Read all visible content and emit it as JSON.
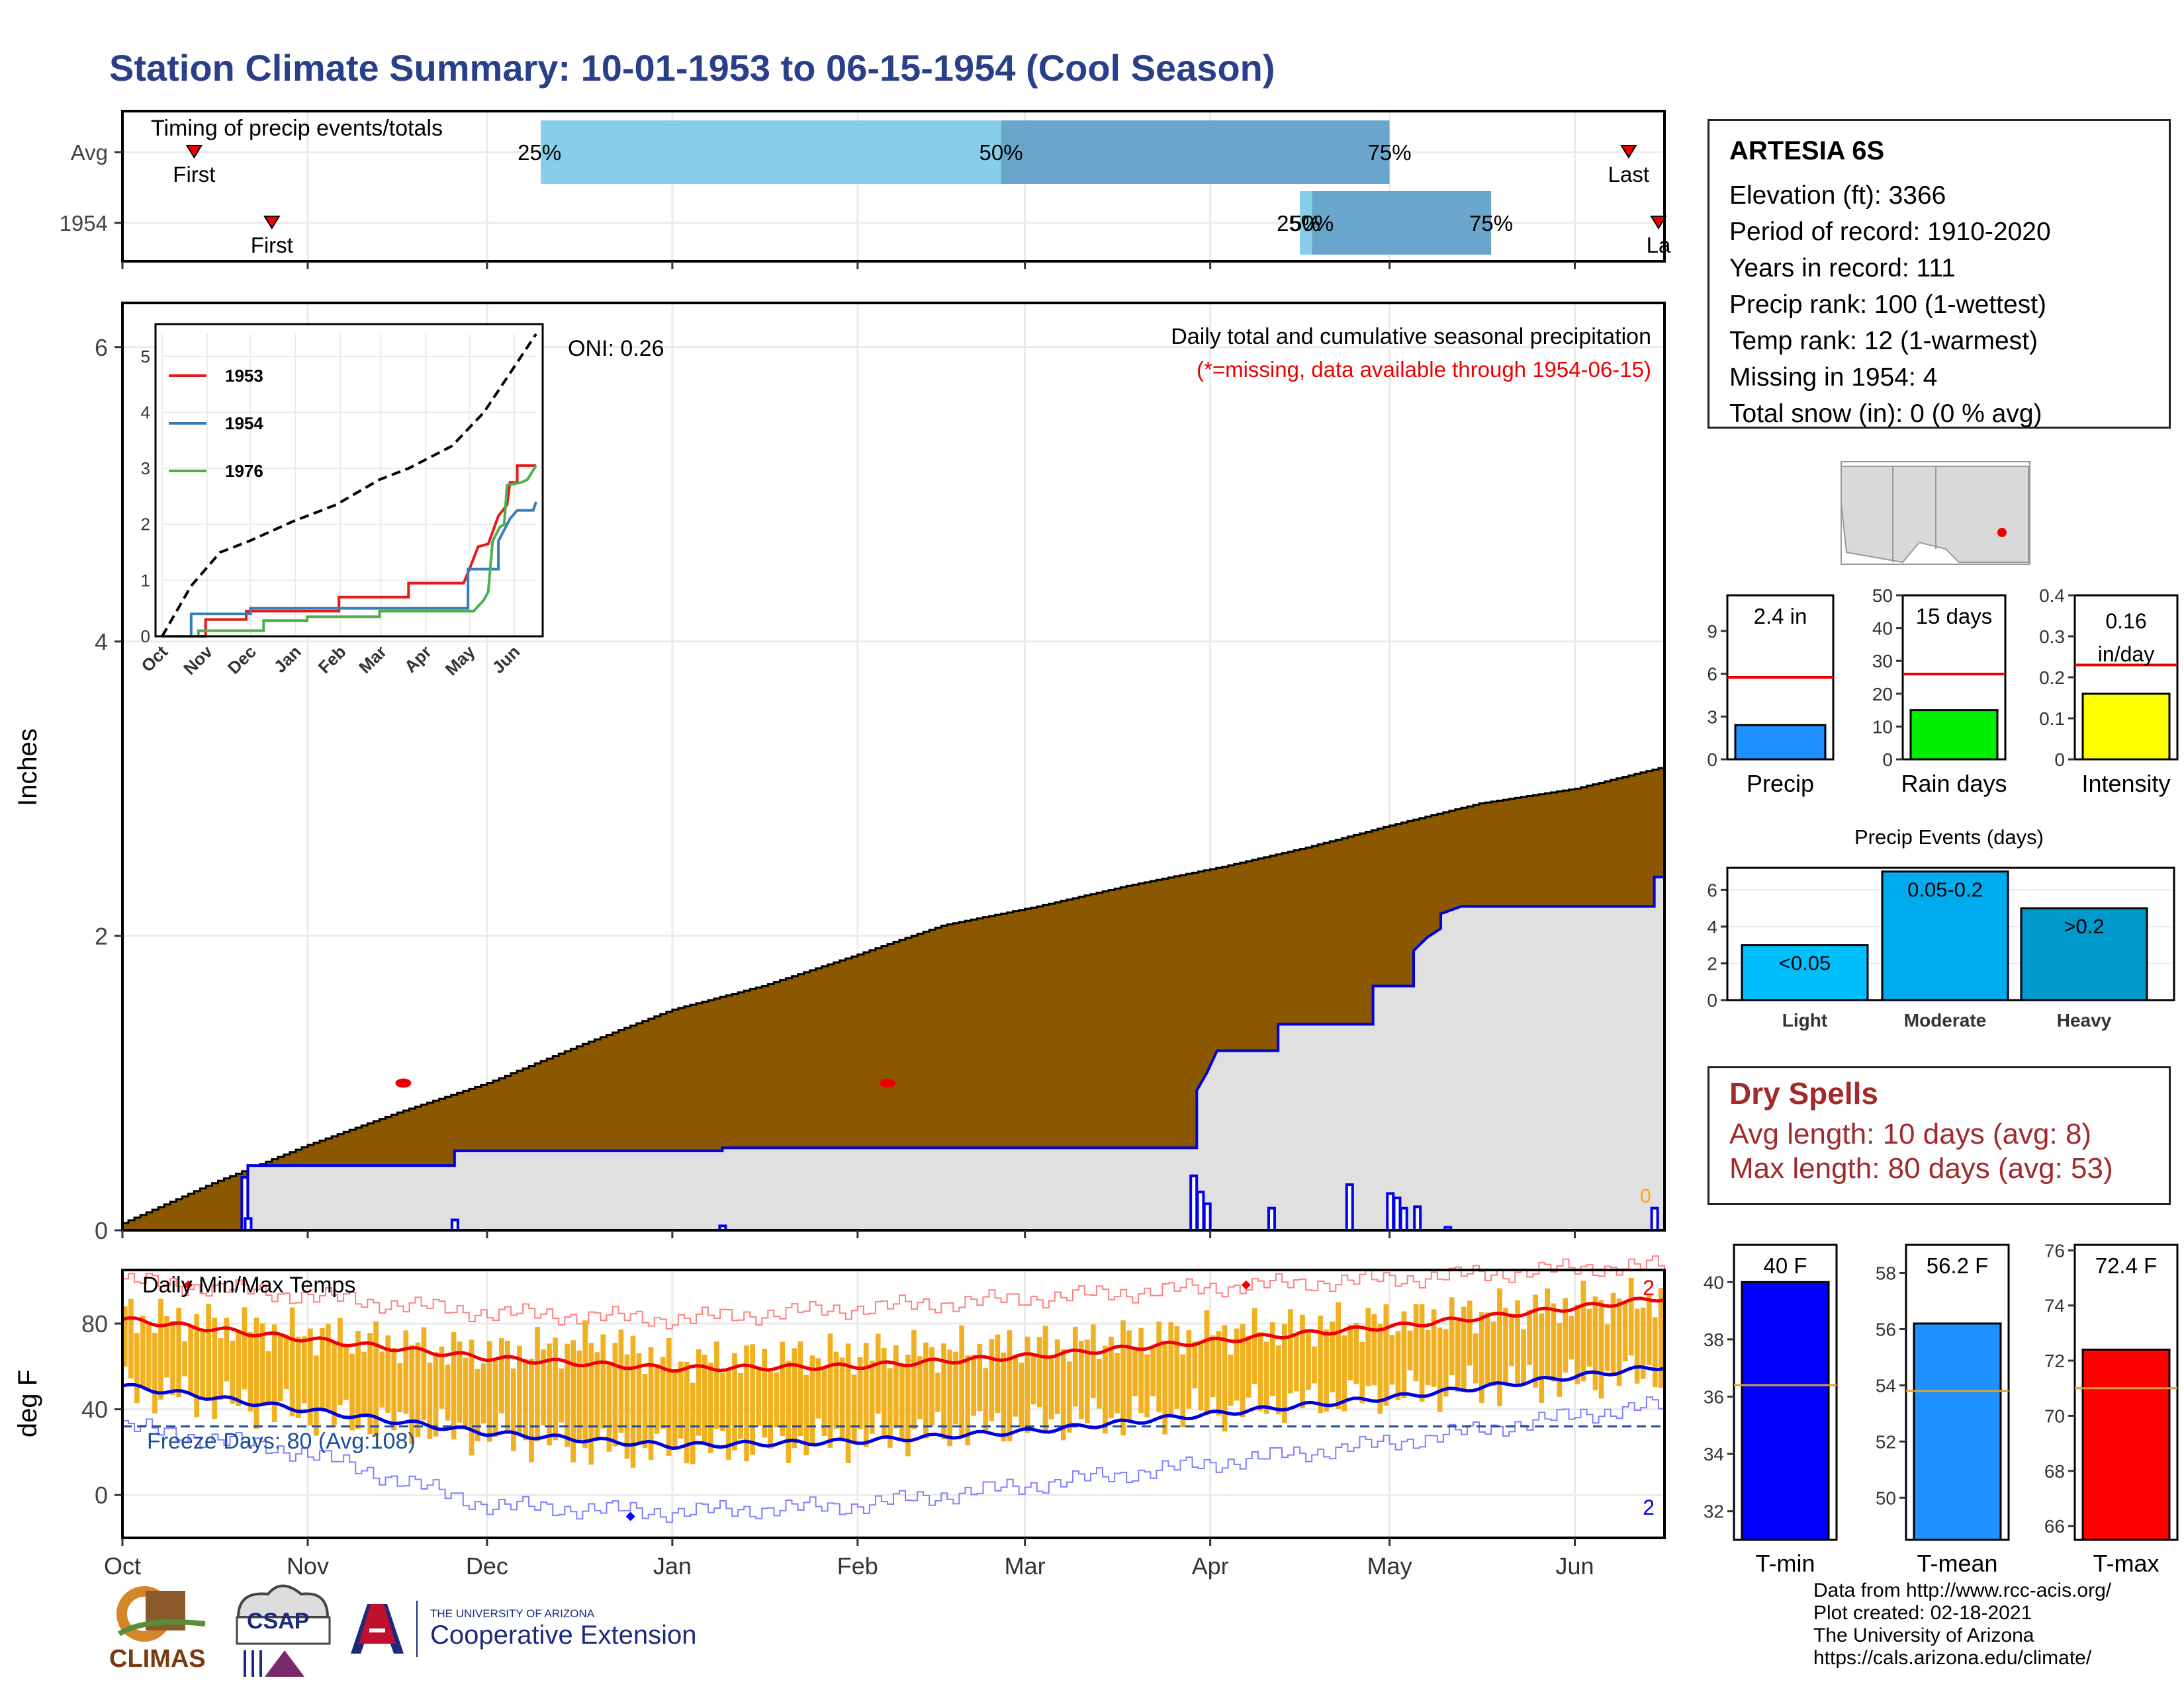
{
  "page_title": "Station Climate Summary: 10-01-1953 to 06-15-1954 (Cool Season)",
  "station": {
    "name": "ARTESIA 6S",
    "lines": [
      "Elevation (ft): 3366",
      "Period of record: 1910-2020",
      "Years in record: 111",
      "Precip rank: 100 (1-wettest)",
      "Temp rank: 12 (1-warmest)",
      "Missing in 1954: 4",
      "Total snow (in): 0 (0 % avg)"
    ]
  },
  "dry_spells": {
    "heading": "Dry Spells",
    "avg_line": "Avg length: 10 days (avg: 8)",
    "max_line": "Max length: 80 days (avg: 53)"
  },
  "footer": {
    "lines": [
      "Data from http://www.rcc-acis.org/",
      "Plot created: 02-18-2021",
      "The University of Arizona",
      "https://cals.arizona.edu/climate/"
    ]
  },
  "logos": {
    "climas": "CLIMAS",
    "csap": "CSAP",
    "ua_small": "THE UNIVERSITY OF ARIZONA",
    "ua_big": "Cooperative Extension"
  },
  "colors": {
    "title": "#2a3f8a",
    "cum_precip_fill": "#8b5800",
    "avg_cum_fill": "#e0e0e0",
    "daily_precip": "#0000ee",
    "temp_bars": "#f0b020",
    "timing_light": "#87ceeb",
    "timing_dark": "#6aa6cc",
    "red": "#ee0000",
    "dryspell": "#a12a2a"
  },
  "chart_data": [
    {
      "id": "timing",
      "type": "bar",
      "title": "Timing of precip events/totals",
      "rows": [
        {
          "label": "Avg",
          "first": "10-13",
          "p25": "12-10",
          "p50": "02-25",
          "p75": "05-01",
          "last": "06-10",
          "first_label": "First",
          "last_label": "Last",
          "p25_label": "25%",
          "p50_label": "50%",
          "p75_label": "75%"
        },
        {
          "label": "1954",
          "first": "10-26",
          "p25": "04-16",
          "p50": "04-18",
          "p75": "05-18",
          "last": "06-15",
          "first_label": "First",
          "last_label": "La",
          "p25_label": "25%",
          "p50_label": "50%",
          "p75_label": "75%"
        }
      ]
    },
    {
      "id": "precip",
      "type": "area",
      "ylabel": "Inches",
      "ylim": [
        0,
        6.3
      ],
      "yticks": [
        0,
        2,
        4,
        6
      ],
      "x_ticks": [
        "Oct",
        "Nov",
        "Dec",
        "Jan",
        "Feb",
        "Mar",
        "Apr",
        "May",
        "Jun"
      ],
      "annotation_title": "Daily total and cumulative seasonal precipitation",
      "annotation_missing": "(*=missing, data available through 1954-06-15)",
      "oni": "ONI: 0.26",
      "zero_label": "0",
      "avg_cumulative": [
        [
          0,
          0.05
        ],
        [
          15,
          0.32
        ],
        [
          31,
          0.58
        ],
        [
          46,
          0.8
        ],
        [
          61,
          1.0
        ],
        [
          76,
          1.25
        ],
        [
          92,
          1.5
        ],
        [
          107,
          1.66
        ],
        [
          122,
          1.86
        ],
        [
          137,
          2.07
        ],
        [
          153,
          2.2
        ],
        [
          168,
          2.34
        ],
        [
          184,
          2.47
        ],
        [
          198,
          2.6
        ],
        [
          212,
          2.75
        ],
        [
          227,
          2.9
        ],
        [
          243,
          3.0
        ],
        [
          258,
          3.15
        ],
        [
          273,
          3.35
        ],
        [
          288,
          3.5
        ],
        [
          303,
          3.75
        ],
        [
          318,
          4.05
        ],
        [
          334,
          4.5
        ],
        [
          349,
          5.2
        ],
        [
          357,
          5.6
        ],
        [
          365,
          5.75
        ]
      ],
      "cumulative_1954": [
        [
          0,
          0
        ],
        [
          37,
          0
        ],
        [
          37,
          0.44
        ],
        [
          98,
          0.44
        ],
        [
          98,
          0.54
        ],
        [
          177,
          0.54
        ],
        [
          177,
          0.56
        ],
        [
          317,
          0.56
        ],
        [
          317,
          0.95
        ],
        [
          320,
          1.07
        ],
        [
          323,
          1.22
        ],
        [
          341,
          1.22
        ],
        [
          341,
          1.4
        ],
        [
          369,
          1.4
        ],
        [
          369,
          1.66
        ],
        [
          381,
          1.66
        ],
        [
          381,
          1.9
        ],
        [
          385,
          1.99
        ],
        [
          389,
          2.05
        ],
        [
          389,
          2.15
        ],
        [
          395,
          2.2
        ],
        [
          452,
          2.2
        ],
        [
          452,
          2.4
        ],
        [
          455,
          2.4
        ]
      ],
      "daily_1954": [
        [
          36,
          0.36
        ],
        [
          37,
          0.08
        ],
        [
          98,
          0.07
        ],
        [
          177,
          0.03
        ],
        [
          316,
          0.37
        ],
        [
          318,
          0.26
        ],
        [
          320,
          0.18
        ],
        [
          339,
          0.15
        ],
        [
          362,
          0.31
        ],
        [
          374,
          0.25
        ],
        [
          376,
          0.22
        ],
        [
          378,
          0.15
        ],
        [
          382,
          0.16
        ],
        [
          391,
          0.02
        ],
        [
          452,
          0.15
        ]
      ],
      "missing_markers": [
        [
          47,
          1.0
        ],
        [
          128,
          1.0
        ]
      ]
    },
    {
      "id": "inset",
      "type": "line",
      "yticks": [
        0,
        1,
        2,
        3,
        4,
        5
      ],
      "x_ticks": [
        "Oct",
        "Nov",
        "Dec",
        "Jan",
        "Feb",
        "Mar",
        "Apr",
        "May",
        "Jun"
      ],
      "series": [
        {
          "name": "1953",
          "color": "#e41a1c",
          "points": [
            [
              0,
              0
            ],
            [
              30,
              0
            ],
            [
              30,
              0.3
            ],
            [
              58,
              0.3
            ],
            [
              58,
              0.45
            ],
            [
              122,
              0.45
            ],
            [
              122,
              0.7
            ],
            [
              170,
              0.7
            ],
            [
              170,
              0.95
            ],
            [
              208,
              0.95
            ],
            [
              212,
              1.2
            ],
            [
              218,
              1.6
            ],
            [
              225,
              1.65
            ],
            [
              232,
              2.15
            ],
            [
              238,
              2.35
            ],
            [
              240,
              2.75
            ],
            [
              245,
              2.75
            ],
            [
              245,
              3.05
            ],
            [
              256,
              3.05
            ],
            [
              258,
              3.05
            ]
          ]
        },
        {
          "name": "1954",
          "color": "#377eb8",
          "points": [
            [
              0,
              0
            ],
            [
              20,
              0
            ],
            [
              20,
              0.4
            ],
            [
              61,
              0.4
            ],
            [
              61,
              0.5
            ],
            [
              211,
              0.5
            ],
            [
              211,
              1.2
            ],
            [
              232,
              1.2
            ],
            [
              232,
              1.7
            ],
            [
              240,
              2.1
            ],
            [
              245,
              2.25
            ],
            [
              256,
              2.25
            ],
            [
              258,
              2.4
            ]
          ]
        },
        {
          "name": "1976",
          "color": "#4daf4a",
          "points": [
            [
              0,
              0
            ],
            [
              25,
              0
            ],
            [
              25,
              0.1
            ],
            [
              70,
              0.1
            ],
            [
              70,
              0.28
            ],
            [
              100,
              0.28
            ],
            [
              100,
              0.35
            ],
            [
              150,
              0.35
            ],
            [
              150,
              0.45
            ],
            [
              215,
              0.45
            ],
            [
              222,
              0.65
            ],
            [
              225,
              0.8
            ],
            [
              228,
              1.7
            ],
            [
              233,
              1.95
            ],
            [
              236,
              2.0
            ],
            [
              238,
              2.7
            ],
            [
              248,
              2.75
            ],
            [
              252,
              2.8
            ],
            [
              258,
              3.05
            ]
          ]
        },
        {
          "name": "avg",
          "color": "#000000",
          "points": [
            [
              0,
              0
            ],
            [
              20,
              0.9
            ],
            [
              40,
              1.5
            ],
            [
              60,
              1.7
            ],
            [
              90,
              2.05
            ],
            [
              120,
              2.35
            ],
            [
              150,
              2.8
            ],
            [
              170,
              3.0
            ],
            [
              200,
              3.4
            ],
            [
              222,
              4.0
            ],
            [
              240,
              4.7
            ],
            [
              258,
              5.4
            ]
          ]
        }
      ]
    },
    {
      "id": "temps",
      "type": "bar",
      "title": "Daily Min/Max Temps",
      "ylabel": "deg F",
      "ylim": [
        -20,
        105
      ],
      "yticks": [
        0,
        40,
        80
      ],
      "freeze_label": "Freeze Days: 80 (Avg:108)",
      "freeze_value": 32,
      "max_count_label": "2",
      "min_count_label": "2",
      "x_ticks": [
        "Oct",
        "Nov",
        "Dec",
        "Jan",
        "Feb",
        "Mar",
        "Apr",
        "May",
        "Jun"
      ],
      "avg_max": [
        [
          0,
          82
        ],
        [
          30,
          73
        ],
        [
          61,
          64
        ],
        [
          92,
          59
        ],
        [
          122,
          60
        ],
        [
          153,
          65
        ],
        [
          183,
          72
        ],
        [
          214,
          79
        ],
        [
          245,
          88
        ],
        [
          258,
          92
        ]
      ],
      "avg_min": [
        [
          0,
          51
        ],
        [
          30,
          40
        ],
        [
          61,
          29
        ],
        [
          92,
          23
        ],
        [
          122,
          25
        ],
        [
          153,
          30
        ],
        [
          183,
          38
        ],
        [
          214,
          46
        ],
        [
          245,
          56
        ],
        [
          258,
          60
        ]
      ],
      "record_max": [
        [
          0,
          100
        ],
        [
          30,
          93
        ],
        [
          61,
          85
        ],
        [
          92,
          82
        ],
        [
          122,
          87
        ],
        [
          153,
          92
        ],
        [
          183,
          97
        ],
        [
          214,
          101
        ],
        [
          245,
          106
        ],
        [
          258,
          107
        ]
      ],
      "record_min": [
        [
          0,
          32
        ],
        [
          30,
          20
        ],
        [
          61,
          -5
        ],
        [
          92,
          -8
        ],
        [
          122,
          -5
        ],
        [
          153,
          5
        ],
        [
          183,
          15
        ],
        [
          214,
          25
        ],
        [
          245,
          38
        ],
        [
          258,
          42
        ]
      ],
      "daily": {
        "start": 0,
        "end": 258,
        "max_mean": [
          [
            0,
            84
          ],
          [
            30,
            76
          ],
          [
            61,
            66
          ],
          [
            80,
            72
          ],
          [
            92,
            62
          ],
          [
            122,
            66
          ],
          [
            153,
            70
          ],
          [
            183,
            76
          ],
          [
            214,
            82
          ],
          [
            245,
            90
          ],
          [
            258,
            92
          ]
        ],
        "min_mean": [
          [
            0,
            50
          ],
          [
            30,
            38
          ],
          [
            61,
            28
          ],
          [
            80,
            22
          ],
          [
            92,
            22
          ],
          [
            122,
            26
          ],
          [
            153,
            34
          ],
          [
            183,
            40
          ],
          [
            214,
            48
          ],
          [
            245,
            54
          ],
          [
            258,
            58
          ]
        ]
      }
    },
    {
      "id": "gauges_precip",
      "type": "bar",
      "panels": [
        {
          "label": "Precip",
          "value": 2.4,
          "value_label": "2.4 in",
          "avg": 5.75,
          "yticks": [
            0,
            3,
            6,
            9
          ],
          "ymax": 11.5,
          "color": "#1e90ff"
        },
        {
          "label": "Rain days",
          "value": 15,
          "value_label": "15 days",
          "avg": 26,
          "yticks": [
            0,
            10,
            20,
            30,
            40,
            50
          ],
          "ymax": 50,
          "color": "#00ee00"
        },
        {
          "label": "Intensity",
          "value": 0.16,
          "value_label": "0.16 in/day",
          "value_label_1": "0.16",
          "value_label_2": "in/day",
          "avg": 0.23,
          "yticks": [
            0.0,
            0.1,
            0.2,
            0.3,
            0.4
          ],
          "ymax": 0.4,
          "color": "#ffff00"
        }
      ]
    },
    {
      "id": "events",
      "type": "bar",
      "title": "Precip Events (days)",
      "categories": [
        "Light",
        "Moderate",
        "Heavy"
      ],
      "values": [
        3,
        7,
        5
      ],
      "bar_labels": [
        "<0.05",
        "0.05-0.2",
        ">0.2"
      ],
      "colors": [
        "#00bfff",
        "#00aaee",
        "#0099cc"
      ],
      "yticks": [
        0,
        2,
        4,
        6
      ],
      "ylim": [
        0,
        7.2
      ]
    },
    {
      "id": "gauges_temp",
      "type": "bar",
      "panels": [
        {
          "label": "T-min",
          "value": 40,
          "value_label": "40 F",
          "avg": 36.4,
          "yticks": [
            32,
            34,
            36,
            38,
            40
          ],
          "ymin": 31,
          "ymax": 41.3,
          "color": "#0000ff"
        },
        {
          "label": "T-mean",
          "value": 56.2,
          "value_label": "56.2 F",
          "avg": 53.8,
          "yticks": [
            50,
            52,
            54,
            56,
            58
          ],
          "ymin": 48.5,
          "ymax": 59,
          "color": "#1e90ff"
        },
        {
          "label": "T-max",
          "value": 72.4,
          "value_label": "72.4 F",
          "avg": 71.0,
          "yticks": [
            66,
            68,
            70,
            72,
            74,
            76
          ],
          "ymin": 65.5,
          "ymax": 76.2,
          "color": "#ff0000"
        }
      ]
    }
  ]
}
